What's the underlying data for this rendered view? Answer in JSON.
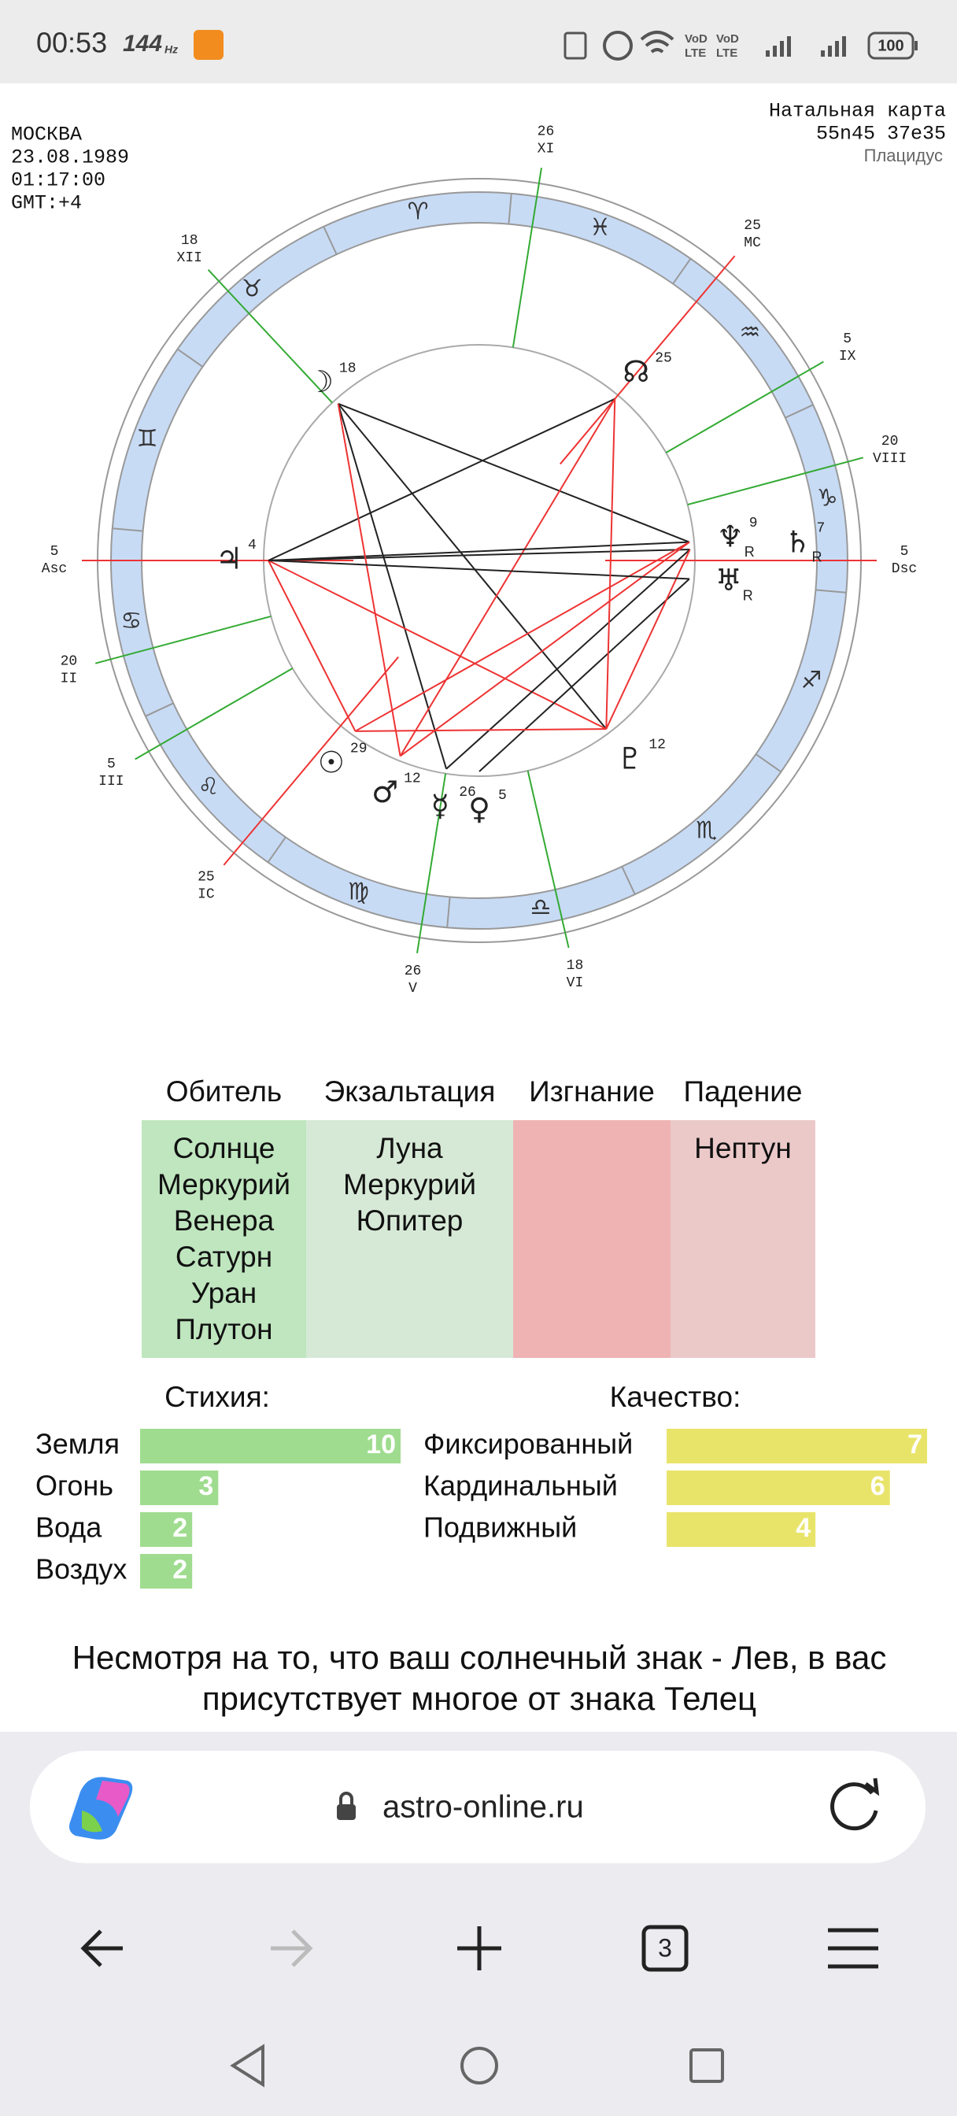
{
  "status_bar": {
    "time": "00:53",
    "refresh": "144",
    "refresh_unit": "Hz",
    "battery": "100"
  },
  "chart_header": {
    "city": "МОСКВА",
    "date": "23.08.1989",
    "time": "01:17:00",
    "gmt": "GMT:+4",
    "title": "Натальная карта",
    "coords": "55n45 37e35",
    "house_system": "Плацидус"
  },
  "zodiac": [
    "♈",
    "♉",
    "♊",
    "♋",
    "♌",
    "♍",
    "♎",
    "♏",
    "♐",
    "♑",
    "♒",
    "♓"
  ],
  "houses": [
    {
      "name": "Asc",
      "degree": 5
    },
    {
      "name": "II",
      "degree": 20
    },
    {
      "name": "III",
      "degree": 5
    },
    {
      "name": "IC",
      "degree": 25
    },
    {
      "name": "V",
      "degree": 26
    },
    {
      "name": "VI",
      "degree": 18
    },
    {
      "name": "Dsc",
      "degree": 5
    },
    {
      "name": "VIII",
      "degree": 20
    },
    {
      "name": "IX",
      "degree": 5
    },
    {
      "name": "MC",
      "degree": 25
    },
    {
      "name": "XI",
      "degree": 26
    },
    {
      "name": "XII",
      "degree": 18
    }
  ],
  "planets": [
    {
      "glyph": "☽",
      "degree": 18
    },
    {
      "glyph": "☊",
      "degree": 25
    },
    {
      "glyph": "♆",
      "degree": 9,
      "retro": "R"
    },
    {
      "glyph": "♄",
      "degree": 7,
      "retro": "R"
    },
    {
      "glyph": "♅",
      "retro": "R"
    },
    {
      "glyph": "♃",
      "degree": 4
    },
    {
      "glyph": "☉",
      "degree": 29
    },
    {
      "glyph": "♂",
      "degree": 12
    },
    {
      "glyph": "☿",
      "degree": 26
    },
    {
      "glyph": "♀",
      "degree": 5
    },
    {
      "glyph": "♇",
      "degree": 12
    }
  ],
  "dignities": [
    {
      "title": "Обитель",
      "planets": [
        "Солнце",
        "Меркурий",
        "Венера",
        "Сатурн",
        "Уран",
        "Плутон"
      ]
    },
    {
      "title": "Экзальтация",
      "planets": [
        "Луна",
        "Меркурий",
        "Юпитер"
      ]
    },
    {
      "title": "Изгнание",
      "planets": []
    },
    {
      "title": "Падение",
      "planets": [
        "Нептун"
      ]
    }
  ],
  "elements": {
    "title": "Стихия:",
    "rows": [
      {
        "name": "Земля",
        "count": 10
      },
      {
        "name": "Огонь",
        "count": 3
      },
      {
        "name": "Вода",
        "count": 2
      },
      {
        "name": "Воздух",
        "count": 2
      }
    ]
  },
  "qualities": {
    "title": "Качество:",
    "rows": [
      {
        "name": "Фиксированный",
        "count": 7
      },
      {
        "name": "Кардинальный",
        "count": 6
      },
      {
        "name": "Подвижный",
        "count": 4
      }
    ]
  },
  "conclusion": [
    "Несмотря на то, что ваш солнечный знак - Лев, в вас",
    "присутствует многое от знака Телец"
  ],
  "browser": {
    "url": "astro-online.ru",
    "tabs": 3
  }
}
